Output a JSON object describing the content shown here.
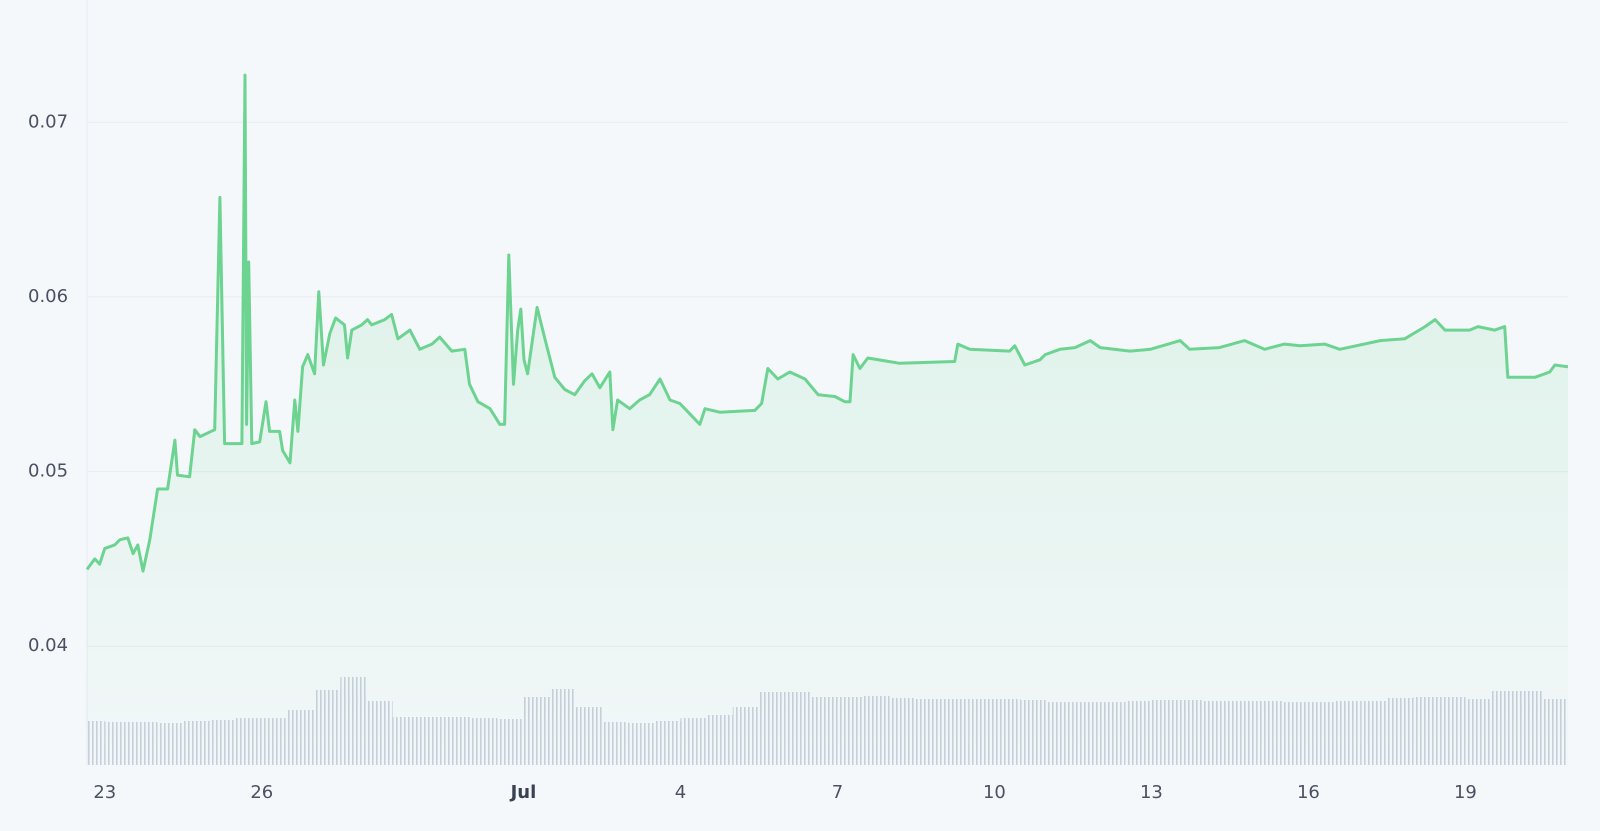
{
  "chart_data": {
    "type": "line",
    "x": [
      -0.34,
      -0.19,
      -0.1,
      0,
      0.19,
      0.29,
      0.44,
      0.54,
      0.63,
      0.73,
      0.86,
      1.01,
      1.2,
      1.34,
      1.39,
      1.62,
      1.72,
      1.82,
      2.1,
      2.2,
      2.29,
      2.43,
      2.62,
      2.68,
      2.71,
      2.75,
      2.81,
      2.96,
      3.08,
      3.15,
      3.34,
      3.4,
      3.54,
      3.63,
      3.69,
      3.78,
      3.88,
      4.01,
      4.09,
      4.18,
      4.3,
      4.41,
      4.58,
      4.64,
      4.72,
      4.91,
      5.02,
      5.1,
      5.35,
      5.48,
      5.6,
      5.83,
      6.02,
      6.25,
      6.4,
      6.63,
      6.88,
      6.97,
      7.13,
      7.36,
      7.55,
      7.64,
      7.72,
      7.81,
      7.89,
      7.95,
      8.01,
      8.08,
      8.26,
      8.41,
      8.6,
      8.79,
      8.98,
      9.17,
      9.31,
      9.46,
      9.65,
      9.71,
      9.8,
      10.03,
      10.22,
      10.41,
      10.61,
      10.8,
      10.99,
      11.18,
      11.37,
      11.47,
      11.75,
      12.42,
      12.55,
      12.67,
      12.86,
      13.09,
      13.38,
      13.63,
      13.95,
      14.14,
      14.24,
      14.3,
      14.43,
      14.58,
      15.19,
      16.24,
      16.3,
      16.53,
      17.29,
      17.39,
      17.58,
      17.87,
      17.97,
      18.25,
      18.54,
      18.83,
      19.02,
      19.59,
      19.98,
      20.55,
      20.73,
      21.3,
      21.78,
      22.16,
      22.54,
      22.84,
      23.31,
      23.6,
      24.37,
      24.84,
      25.23,
      25.42,
      25.61,
      26.08,
      26.24,
      26.56,
      26.75,
      26.81,
      27.33,
      27.61,
      27.71,
      27.96
    ],
    "series": [
      {
        "color": "#6dd391",
        "values": [
          0.0444,
          0.045,
          0.0447,
          0.0456,
          0.0458,
          0.0461,
          0.0462,
          0.0453,
          0.0458,
          0.0443,
          0.0461,
          0.049,
          0.049,
          0.0518,
          0.0498,
          0.0497,
          0.0524,
          0.052,
          0.0524,
          0.0657,
          0.0516,
          0.0516,
          0.0516,
          0.0727,
          0.0527,
          0.062,
          0.0516,
          0.0517,
          0.054,
          0.0523,
          0.0523,
          0.0512,
          0.0505,
          0.0541,
          0.0523,
          0.056,
          0.0567,
          0.0556,
          0.0603,
          0.0561,
          0.0579,
          0.0588,
          0.0584,
          0.0565,
          0.0581,
          0.0584,
          0.0587,
          0.0584,
          0.0587,
          0.059,
          0.0576,
          0.0581,
          0.057,
          0.0573,
          0.0577,
          0.0569,
          0.057,
          0.055,
          0.054,
          0.0536,
          0.0527,
          0.0527,
          0.0624,
          0.055,
          0.0581,
          0.0593,
          0.0564,
          0.0556,
          0.0594,
          0.0576,
          0.0554,
          0.0547,
          0.0544,
          0.0552,
          0.0556,
          0.0548,
          0.0557,
          0.0524,
          0.0541,
          0.0536,
          0.0541,
          0.0544,
          0.0553,
          0.0541,
          0.0539,
          0.0533,
          0.0527,
          0.0536,
          0.0534,
          0.0535,
          0.0539,
          0.0559,
          0.0553,
          0.0557,
          0.0553,
          0.0544,
          0.0543,
          0.054,
          0.054,
          0.0567,
          0.0559,
          0.0565,
          0.0562,
          0.0563,
          0.0573,
          0.057,
          0.0569,
          0.0572,
          0.0561,
          0.0564,
          0.0567,
          0.057,
          0.0571,
          0.0575,
          0.0571,
          0.0569,
          0.057,
          0.0575,
          0.057,
          0.0571,
          0.0575,
          0.057,
          0.0573,
          0.0572,
          0.0573,
          0.057,
          0.0575,
          0.0576,
          0.0583,
          0.0587,
          0.0581,
          0.0581,
          0.0583,
          0.0581,
          0.0583,
          0.0554,
          0.0554,
          0.0557,
          0.0561,
          0.056
        ]
      }
    ],
    "xlim": [
      -0.34,
      27.96
    ],
    "ylim": [
      0.0332,
      0.077
    ],
    "xticks": [
      {
        "value": 0,
        "label": "23"
      },
      {
        "value": 3,
        "label": "26"
      },
      {
        "value": 8,
        "label": "Jul"
      },
      {
        "value": 11,
        "label": "4"
      },
      {
        "value": 14,
        "label": "7"
      },
      {
        "value": 17,
        "label": "10"
      },
      {
        "value": 20,
        "label": "13"
      },
      {
        "value": 23,
        "label": "16"
      },
      {
        "value": 26,
        "label": "19"
      }
    ],
    "yticks": [
      0.04,
      0.05,
      0.06,
      0.07
    ],
    "grid": true,
    "volume": {
      "color": "#c9cfdc",
      "x": [
        -0.25,
        0.25,
        0.75,
        1.25,
        1.75,
        2.25,
        2.75,
        3.25,
        3.75,
        4.25,
        4.75,
        5.25,
        5.75,
        6.25,
        6.75,
        7.25,
        7.75,
        8.25,
        8.75,
        9.25,
        9.75,
        10.25,
        10.75,
        11.25,
        11.75,
        12.25,
        12.75,
        13.25,
        13.75,
        14.25,
        14.75,
        15.25,
        15.75,
        16.25,
        16.75,
        17.25,
        17.75,
        18.25,
        18.75,
        19.25,
        19.75,
        20.25,
        20.75,
        21.25,
        21.75,
        22.25,
        22.75,
        23.25,
        23.75,
        24.25,
        24.75,
        25.25,
        25.75,
        26.25,
        26.75,
        27.25,
        27.75
      ],
      "values": [
        44,
        43,
        43,
        42,
        44,
        45,
        47,
        47,
        55,
        75,
        88,
        64,
        48,
        48,
        48,
        47,
        46,
        68,
        76,
        58,
        43,
        42,
        44,
        47,
        50,
        58,
        73,
        73,
        68,
        68,
        69,
        67,
        66,
        66,
        66,
        66,
        65,
        63,
        63,
        63,
        64,
        65,
        65,
        64,
        64,
        64,
        63,
        63,
        64,
        64,
        67,
        68,
        68,
        66,
        74,
        74,
        66
      ]
    },
    "y2lim": [
      0,
      100
    ]
  }
}
